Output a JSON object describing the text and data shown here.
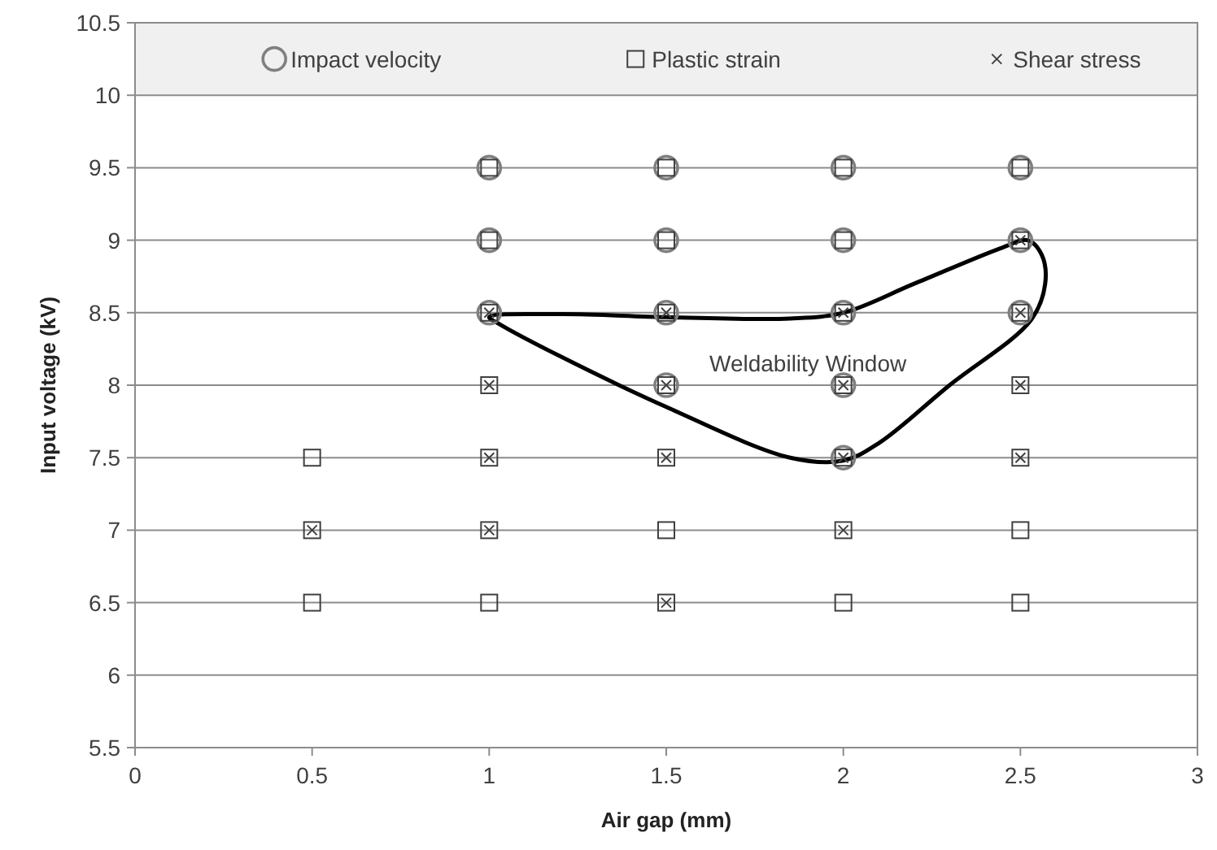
{
  "chart_data": {
    "type": "scatter",
    "xlabel": "Air gap (mm)",
    "ylabel": "Input voltage (kV)",
    "xlim": [
      0,
      3
    ],
    "xticks": [
      0,
      0.5,
      1,
      1.5,
      2,
      2.5,
      3
    ],
    "ylim": [
      5.5,
      10.5
    ],
    "yticks": [
      5.5,
      6,
      6.5,
      7,
      7.5,
      8,
      8.5,
      9,
      9.5,
      10,
      10.5
    ],
    "grid": "y",
    "legend": "top",
    "annotations": [
      "Weldability Window"
    ],
    "series": [
      {
        "name": "Impact velocity",
        "marker": "circle",
        "color": "#808080",
        "x": [
          1,
          1,
          1,
          1.5,
          1.5,
          1.5,
          1.5,
          2,
          2,
          2,
          2,
          2,
          2.5,
          2.5,
          2.5
        ],
        "values": [
          9.5,
          9,
          8.5,
          9.5,
          9,
          8.5,
          8,
          9.5,
          9,
          8.5,
          8,
          7.5,
          9.5,
          9,
          8.5
        ]
      },
      {
        "name": "Plastic strain",
        "marker": "square",
        "color": "#404040",
        "x": [
          0.5,
          0.5,
          0.5,
          1,
          1,
          1,
          1,
          1,
          1,
          1,
          1.5,
          1.5,
          1.5,
          1.5,
          1.5,
          1.5,
          1.5,
          2,
          2,
          2,
          2,
          2,
          2,
          2,
          2.5,
          2.5,
          2.5,
          2.5,
          2.5,
          2.5,
          2.5
        ],
        "values": [
          7.5,
          7,
          6.5,
          9.5,
          9,
          8.5,
          8,
          7.5,
          7,
          6.5,
          9.5,
          9,
          8.5,
          8,
          7.5,
          7,
          6.5,
          9.5,
          9,
          8.5,
          8,
          7.5,
          7,
          6.5,
          9.5,
          9,
          8.5,
          8,
          7.5,
          7,
          6.5
        ]
      },
      {
        "name": "Shear stress",
        "marker": "cross",
        "color": "#404040",
        "x": [
          0.5,
          1,
          1,
          1,
          1,
          1.5,
          1.5,
          1.5,
          1.5,
          2,
          2,
          2,
          2,
          2.5,
          2.5,
          2.5,
          2.5
        ],
        "values": [
          7,
          8.5,
          8,
          7.5,
          7,
          8.5,
          8,
          7.5,
          6.5,
          8.5,
          8,
          7.5,
          7,
          9,
          8.5,
          8,
          7.5
        ]
      }
    ]
  }
}
